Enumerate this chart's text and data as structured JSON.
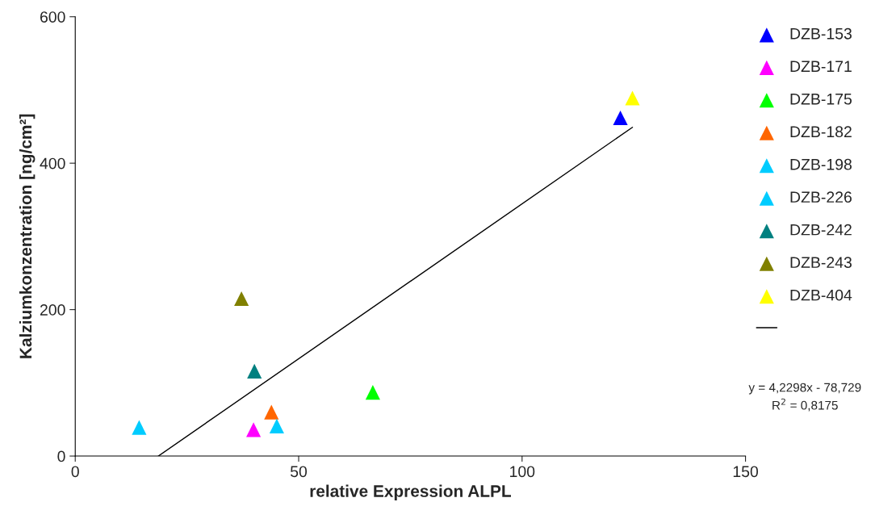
{
  "chart_data": {
    "type": "scatter",
    "xlabel": "relative Expression ALPL",
    "ylabel": "Kalziumkonzentration [ng/cm²]",
    "xlim": [
      0,
      150
    ],
    "xticks": [
      0,
      50,
      100,
      150
    ],
    "ylim": [
      0,
      600
    ],
    "yticks": [
      0,
      200,
      400,
      600
    ],
    "grid": false,
    "legend": "right",
    "marker": "triangle",
    "series": [
      {
        "name": "DZB-153",
        "color": "#0000ff",
        "x": [
          122.0
        ],
        "values": [
          462
        ]
      },
      {
        "name": "DZB-171",
        "color": "#ff00ff",
        "x": [
          39.9
        ],
        "values": [
          36
        ]
      },
      {
        "name": "DZB-175",
        "color": "#00ff00",
        "x": [
          66.6
        ],
        "values": [
          87
        ]
      },
      {
        "name": "DZB-182",
        "color": "#ff6600",
        "x": [
          43.9
        ],
        "values": [
          60
        ]
      },
      {
        "name": "DZB-198",
        "color": "#00ccff",
        "x": [
          14.3
        ],
        "values": [
          39
        ]
      },
      {
        "name": "DZB-226",
        "color": "#00ccff",
        "x": [
          45.1
        ],
        "values": [
          41
        ]
      },
      {
        "name": "DZB-242",
        "color": "#008080",
        "x": [
          40.1
        ],
        "values": [
          116
        ]
      },
      {
        "name": "DZB-243",
        "color": "#808000",
        "x": [
          37.2
        ],
        "values": [
          215
        ]
      },
      {
        "name": "DZB-404",
        "color": "#ffff00",
        "x": [
          124.7
        ],
        "values": [
          489
        ]
      },
      {
        "type": "line",
        "marker": "none",
        "color": "#000000",
        "x": [
          18.6,
          124.7
        ],
        "values": [
          0,
          449
        ]
      }
    ],
    "annotations": [
      "y = 4,2298x - 78,729\nR$^{2}$ = 0,8175"
    ]
  }
}
